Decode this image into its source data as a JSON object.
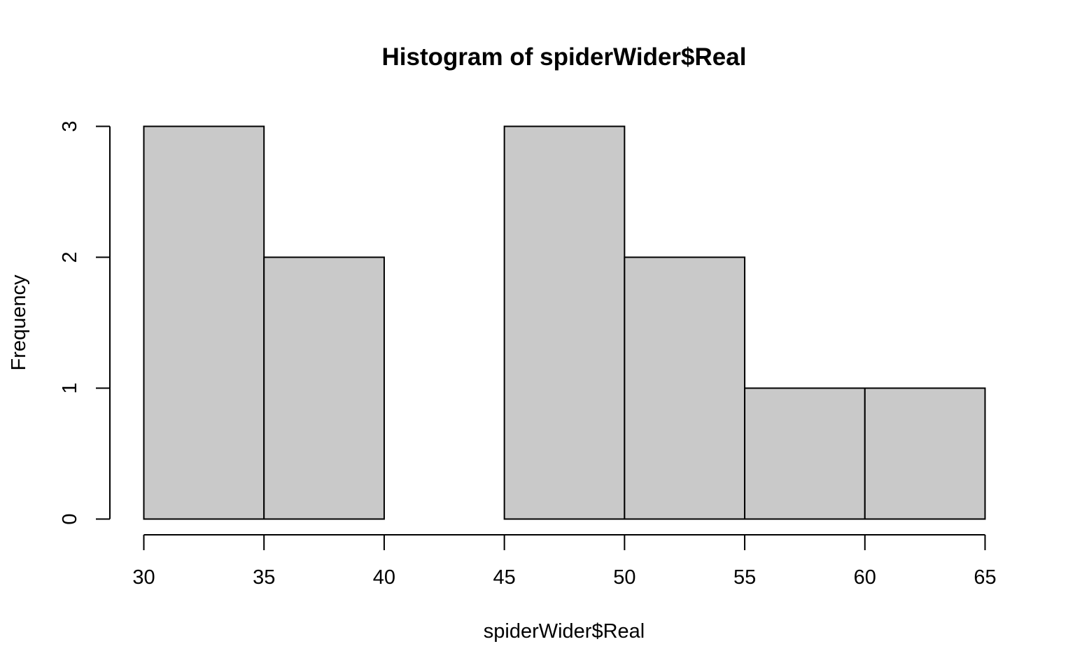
{
  "chart_data": {
    "type": "bar",
    "subtype": "histogram",
    "title": "Histogram of spiderWider$Real",
    "xlabel": "spiderWider$Real",
    "ylabel": "Frequency",
    "bins": [
      {
        "from": 30,
        "to": 35,
        "count": 3
      },
      {
        "from": 35,
        "to": 40,
        "count": 2
      },
      {
        "from": 40,
        "to": 45,
        "count": 0
      },
      {
        "from": 45,
        "to": 50,
        "count": 3
      },
      {
        "from": 50,
        "to": 55,
        "count": 2
      },
      {
        "from": 55,
        "to": 60,
        "count": 1
      },
      {
        "from": 60,
        "to": 65,
        "count": 1
      }
    ],
    "xlim": [
      30,
      65
    ],
    "ylim": [
      0,
      3
    ],
    "xticks": [
      30,
      35,
      40,
      45,
      50,
      55,
      60,
      65
    ],
    "yticks": [
      0,
      1,
      2,
      3
    ],
    "bar_color": "#c9c9c9",
    "grid": false,
    "legend": "none"
  }
}
